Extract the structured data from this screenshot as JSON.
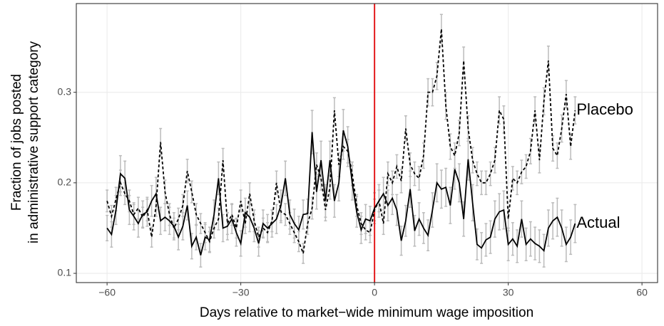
{
  "chart_data": {
    "type": "line",
    "x_label": "Days relative to market−wide minimum wage imposition",
    "y_label": [
      "Fraction of jobs posted",
      "in administrative support category"
    ],
    "x": [
      -60,
      -59,
      -58,
      -57,
      -56,
      -55,
      -54,
      -53,
      -52,
      -51,
      -50,
      -49,
      -48,
      -47,
      -46,
      -45,
      -44,
      -43,
      -42,
      -41,
      -40,
      -39,
      -38,
      -37,
      -36,
      -35,
      -34,
      -33,
      -32,
      -31,
      -30,
      -29,
      -28,
      -27,
      -26,
      -25,
      -24,
      -23,
      -22,
      -21,
      -20,
      -19,
      -18,
      -17,
      -16,
      -15,
      -14,
      -13,
      -12,
      -11,
      -10,
      -9,
      -8,
      -7,
      -6,
      -5,
      -4,
      -3,
      -2,
      -1,
      0,
      1,
      2,
      3,
      4,
      5,
      6,
      7,
      8,
      9,
      10,
      11,
      12,
      13,
      14,
      15,
      16,
      17,
      18,
      19,
      20,
      21,
      22,
      23,
      24,
      25,
      26,
      27,
      28,
      29,
      30,
      31,
      32,
      33,
      34,
      35,
      36,
      37,
      38,
      39,
      40,
      41,
      42,
      43,
      44,
      45
    ],
    "series": [
      {
        "name": "Placebo",
        "color": "#000000",
        "dash": "4,3",
        "error_color": "#bbbbbb",
        "values": [
          0.18,
          0.163,
          0.182,
          0.2,
          0.188,
          0.18,
          0.165,
          0.172,
          0.162,
          0.17,
          0.14,
          0.175,
          0.245,
          0.19,
          0.165,
          0.15,
          0.16,
          0.175,
          0.213,
          0.19,
          0.165,
          0.155,
          0.145,
          0.135,
          0.15,
          0.16,
          0.225,
          0.155,
          0.165,
          0.15,
          0.18,
          0.155,
          0.188,
          0.158,
          0.14,
          0.15,
          0.145,
          0.158,
          0.2,
          0.168,
          0.165,
          0.155,
          0.145,
          0.135,
          0.122,
          0.155,
          0.172,
          0.22,
          0.205,
          0.17,
          0.195,
          0.28,
          0.22,
          0.24,
          0.235,
          0.21,
          0.175,
          0.155,
          0.148,
          0.145,
          0.17,
          0.18,
          0.155,
          0.21,
          0.2,
          0.218,
          0.202,
          0.26,
          0.22,
          0.21,
          0.205,
          0.23,
          0.3,
          0.3,
          0.318,
          0.37,
          0.285,
          0.24,
          0.23,
          0.255,
          0.335,
          0.26,
          0.225,
          0.21,
          0.2,
          0.2,
          0.21,
          0.225,
          0.28,
          0.27,
          0.16,
          0.205,
          0.2,
          0.212,
          0.218,
          0.235,
          0.28,
          0.225,
          0.29,
          0.335,
          0.238,
          0.23,
          0.26,
          0.298,
          0.24,
          0.28
        ],
        "errors": [
          0.012,
          0.012,
          0.013,
          0.014,
          0.012,
          0.012,
          0.011,
          0.012,
          0.011,
          0.012,
          0.011,
          0.012,
          0.015,
          0.013,
          0.012,
          0.011,
          0.012,
          0.012,
          0.013,
          0.012,
          0.012,
          0.011,
          0.011,
          0.011,
          0.011,
          0.012,
          0.013,
          0.012,
          0.012,
          0.011,
          0.012,
          0.011,
          0.012,
          0.012,
          0.011,
          0.011,
          0.011,
          0.012,
          0.013,
          0.012,
          0.012,
          0.012,
          0.011,
          0.011,
          0.011,
          0.012,
          0.012,
          0.013,
          0.013,
          0.012,
          0.013,
          0.014,
          0.013,
          0.014,
          0.013,
          0.013,
          0.012,
          0.012,
          0.011,
          0.011,
          0.012,
          0.012,
          0.012,
          0.013,
          0.013,
          0.013,
          0.013,
          0.014,
          0.013,
          0.013,
          0.013,
          0.014,
          0.015,
          0.015,
          0.015,
          0.016,
          0.015,
          0.014,
          0.014,
          0.014,
          0.015,
          0.014,
          0.014,
          0.013,
          0.013,
          0.013,
          0.013,
          0.014,
          0.015,
          0.015,
          0.013,
          0.013,
          0.013,
          0.013,
          0.013,
          0.014,
          0.015,
          0.014,
          0.015,
          0.016,
          0.014,
          0.014,
          0.015,
          0.015,
          0.014,
          0.015
        ]
      },
      {
        "name": "Actual",
        "color": "#000000",
        "dash": "none",
        "error_color": "#bbbbbb",
        "values": [
          0.15,
          0.143,
          0.17,
          0.21,
          0.205,
          0.17,
          0.163,
          0.155,
          0.165,
          0.168,
          0.18,
          0.188,
          0.158,
          0.162,
          0.158,
          0.152,
          0.14,
          0.152,
          0.175,
          0.13,
          0.14,
          0.12,
          0.14,
          0.137,
          0.165,
          0.205,
          0.15,
          0.152,
          0.16,
          0.145,
          0.133,
          0.167,
          0.162,
          0.15,
          0.133,
          0.155,
          0.15,
          0.155,
          0.16,
          0.175,
          0.205,
          0.165,
          0.155,
          0.148,
          0.165,
          0.166,
          0.256,
          0.19,
          0.225,
          0.18,
          0.225,
          0.18,
          0.2,
          0.258,
          0.24,
          0.2,
          0.168,
          0.148,
          0.16,
          0.158,
          0.172,
          0.18,
          0.188,
          0.175,
          0.183,
          0.17,
          0.136,
          0.158,
          0.193,
          0.147,
          0.16,
          0.15,
          0.142,
          0.17,
          0.2,
          0.193,
          0.195,
          0.175,
          0.215,
          0.2,
          0.16,
          0.226,
          0.178,
          0.132,
          0.128,
          0.137,
          0.14,
          0.16,
          0.168,
          0.17,
          0.132,
          0.138,
          0.13,
          0.16,
          0.132,
          0.138,
          0.133,
          0.13,
          0.125,
          0.15,
          0.158,
          0.162,
          0.15,
          0.132,
          0.14,
          0.155
        ],
        "errors": [
          0.014,
          0.014,
          0.016,
          0.02,
          0.019,
          0.016,
          0.015,
          0.015,
          0.015,
          0.016,
          0.017,
          0.018,
          0.015,
          0.015,
          0.015,
          0.015,
          0.014,
          0.015,
          0.016,
          0.014,
          0.014,
          0.013,
          0.014,
          0.014,
          0.016,
          0.018,
          0.015,
          0.015,
          0.016,
          0.015,
          0.014,
          0.016,
          0.016,
          0.015,
          0.014,
          0.015,
          0.015,
          0.015,
          0.016,
          0.017,
          0.019,
          0.016,
          0.016,
          0.015,
          0.016,
          0.016,
          0.024,
          0.019,
          0.021,
          0.018,
          0.021,
          0.018,
          0.02,
          0.023,
          0.022,
          0.019,
          0.017,
          0.015,
          0.016,
          0.016,
          0.017,
          0.018,
          0.018,
          0.017,
          0.018,
          0.017,
          0.016,
          0.017,
          0.02,
          0.017,
          0.018,
          0.017,
          0.017,
          0.019,
          0.021,
          0.021,
          0.021,
          0.02,
          0.022,
          0.021,
          0.019,
          0.023,
          0.02,
          0.017,
          0.017,
          0.018,
          0.018,
          0.02,
          0.02,
          0.021,
          0.018,
          0.018,
          0.018,
          0.02,
          0.018,
          0.019,
          0.018,
          0.018,
          0.018,
          0.02,
          0.02,
          0.021,
          0.02,
          0.019,
          0.019,
          0.021
        ]
      }
    ],
    "vline": {
      "x": 0,
      "color": "#e31a1c"
    },
    "xlim": [
      -66.9,
      63.5
    ],
    "ylim": [
      0.0898,
      0.398
    ],
    "xticks": [
      {
        "value": -60,
        "label": "−60"
      },
      {
        "value": -30,
        "label": "−30"
      },
      0,
      30,
      60
    ],
    "yticks": [
      0.1,
      0.2,
      0.3
    ],
    "grid": true
  }
}
